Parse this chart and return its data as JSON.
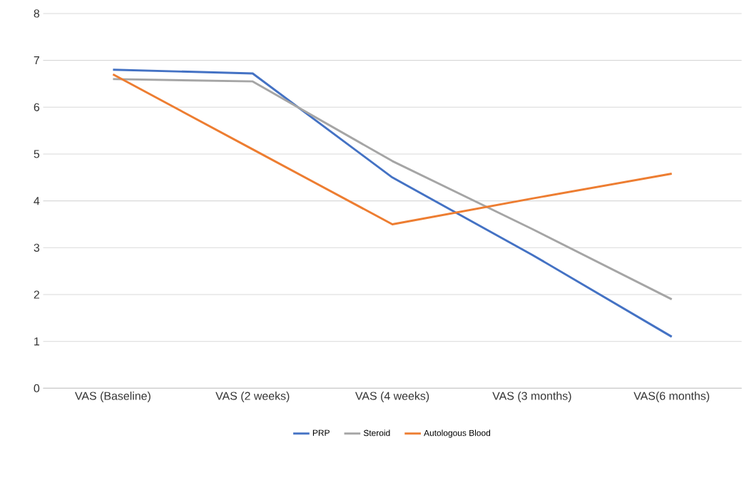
{
  "chart_data": {
    "type": "line",
    "categories": [
      "VAS (Baseline)",
      "VAS (2 weeks)",
      "VAS (4 weeks)",
      "VAS (3 months)",
      "VAS(6 months)"
    ],
    "series": [
      {
        "name": "PRP",
        "color": "#4472c4",
        "values": [
          6.8,
          6.72,
          4.5,
          2.85,
          1.1
        ]
      },
      {
        "name": "Steroid",
        "color": "#a5a5a5",
        "values": [
          6.6,
          6.55,
          4.85,
          3.4,
          1.9
        ]
      },
      {
        "name": "Autologous Blood",
        "color": "#ed7d31",
        "values": [
          6.7,
          5.1,
          3.5,
          4.05,
          4.58
        ]
      }
    ],
    "ylim": [
      0,
      8
    ],
    "yticks": [
      0,
      1,
      2,
      3,
      4,
      5,
      6,
      7,
      8
    ],
    "grid": "y",
    "legend": "bottom",
    "marker": "none",
    "line_style": "solid"
  }
}
